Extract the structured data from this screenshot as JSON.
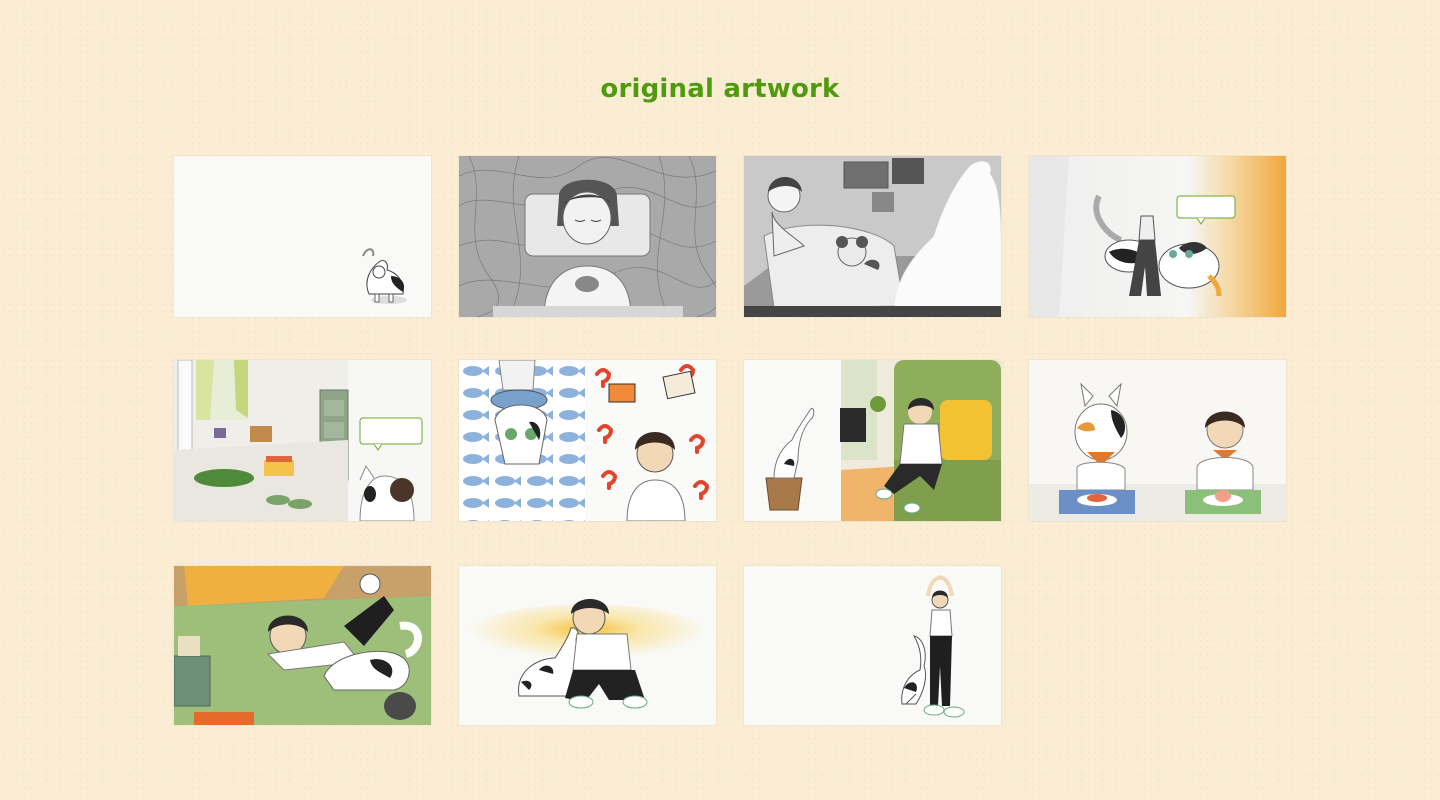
{
  "page": {
    "title": "original artwork"
  },
  "gallery": {
    "artworks": [
      {
        "scene": "white-cat-corner"
      },
      {
        "scene": "sleeping-child-scribbles"
      },
      {
        "scene": "child-in-bed-with-teddy"
      },
      {
        "scene": "cat-and-boy-speech-bubble"
      },
      {
        "scene": "messy-room-boy-and-cat"
      },
      {
        "scene": "fish-pattern-and-question-marks"
      },
      {
        "scene": "cat-in-bag-boy-on-sofa"
      },
      {
        "scene": "cat-and-boy-eating"
      },
      {
        "scene": "boy-lying-with-cat"
      },
      {
        "scene": "boy-kissing-cat"
      },
      {
        "scene": "boy-stretching-with-cat"
      }
    ]
  },
  "colors": {
    "background": "#fbedd3",
    "title": "#4f9a0e",
    "accent_orange": "#f1a73b",
    "accent_green": "#8eb35a",
    "accent_blue": "#8fb2dd",
    "accent_red": "#e2452b"
  }
}
